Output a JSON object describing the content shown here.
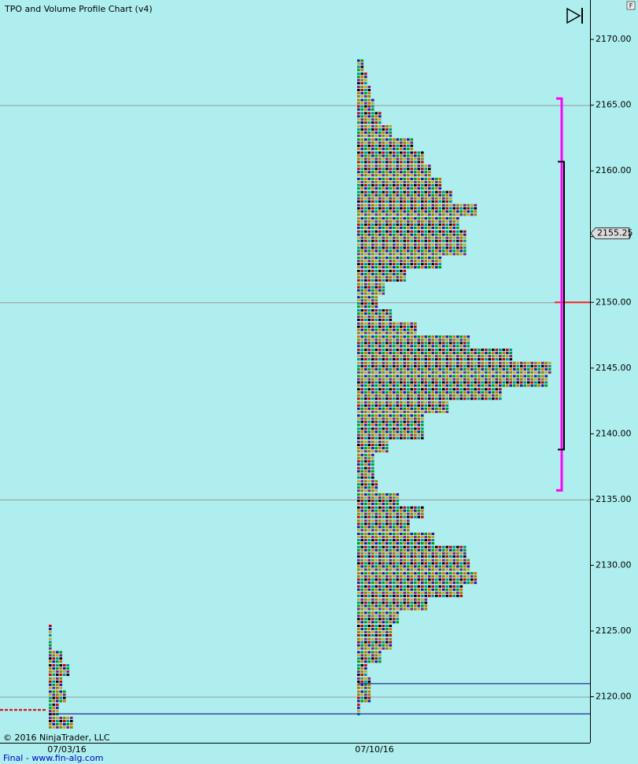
{
  "chart_data": {
    "type": "tpo",
    "title": "TPO and Volume Profile Chart (v4)",
    "button": "F",
    "copyright": "© 2016 NinjaTrader, LLC",
    "footer": "Final - www.fin-alg.com",
    "ylim": [
      2116.5,
      2173
    ],
    "yticks": [
      {
        "value": 2120,
        "label": "2120.00"
      },
      {
        "value": 2125,
        "label": "2125.00"
      },
      {
        "value": 2130,
        "label": "2130.00"
      },
      {
        "value": 2135,
        "label": "2135.00"
      },
      {
        "value": 2140,
        "label": "2140.00"
      },
      {
        "value": 2145,
        "label": "2145.00"
      },
      {
        "value": 2150,
        "label": "2150.00"
      },
      {
        "value": 2155,
        "label": "2155.00"
      },
      {
        "value": 2160,
        "label": "2160.00"
      },
      {
        "value": 2165,
        "label": "2165.00"
      },
      {
        "value": 2170,
        "label": "2170.00"
      }
    ],
    "grid_lines": [
      2165,
      2150,
      2135,
      2120
    ],
    "last_price": 2155.25,
    "point_of_control": 2150,
    "value_area": {
      "high": 2165.5,
      "low": 2135.7
    },
    "range_bar": {
      "high": 2160.7,
      "low": 2138.8
    },
    "blue_lines": [
      2121,
      2118.7
    ],
    "prior_close": 2119,
    "palette": [
      "#cc0000",
      "#1a1aa8",
      "#d4a017",
      "#009090",
      "#00a000",
      "#8a1a8a",
      "#000000",
      "#d86a00",
      "#888800"
    ],
    "profiles": [
      {
        "date": "07/03/16",
        "levels": [
          2125,
          2124,
          2123,
          2122,
          2121,
          2120,
          2119,
          2118
        ],
        "counts": [
          1,
          1,
          4,
          6,
          4,
          5,
          3,
          7
        ]
      },
      {
        "date": "07/10/16",
        "levels": [
          2168,
          2167,
          2166,
          2165,
          2164,
          2163,
          2162,
          2161,
          2160,
          2159,
          2158,
          2157,
          2156,
          2155,
          2154,
          2153,
          2152,
          2151,
          2150,
          2149,
          2148,
          2147,
          2146,
          2145,
          2144,
          2143,
          2142,
          2141,
          2140,
          2139,
          2138,
          2137,
          2136,
          2135,
          2134,
          2133,
          2132,
          2131,
          2130,
          2129,
          2128,
          2127,
          2126,
          2125,
          2124,
          2123,
          2122,
          2121,
          2120,
          2119
        ],
        "counts": [
          2,
          3,
          4,
          5,
          7,
          10,
          16,
          19,
          21,
          24,
          27,
          34,
          29,
          31,
          31,
          24,
          14,
          8,
          6,
          10,
          17,
          32,
          44,
          55,
          54,
          41,
          26,
          19,
          19,
          9,
          5,
          5,
          6,
          12,
          19,
          15,
          22,
          31,
          32,
          34,
          30,
          20,
          12,
          10,
          10,
          7,
          3,
          4,
          4,
          1
        ]
      }
    ]
  }
}
